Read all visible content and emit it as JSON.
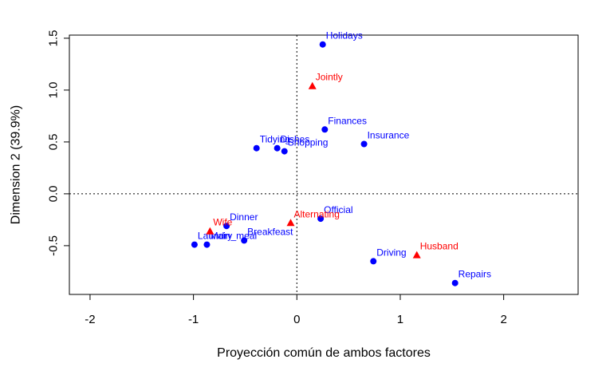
{
  "chart_data": {
    "type": "scatter",
    "title": "",
    "xlabel": "Proyección común de ambos factores",
    "ylabel": "Dimension 2 (39.9%)",
    "xlim": [
      -2.2,
      2.72
    ],
    "ylim": [
      -0.97,
      1.53
    ],
    "xticks": [
      -2,
      -1,
      0,
      1,
      2
    ],
    "yticks": [
      -0.5,
      0.0,
      0.5,
      1.0,
      1.5
    ],
    "xtick_labels": [
      "-2",
      "-1",
      "0",
      "1",
      "2"
    ],
    "ytick_labels": [
      "-0.5",
      "0.0",
      "0.5",
      "1.0",
      "1.5"
    ],
    "reference_lines": {
      "x": 0,
      "y": 0,
      "style": "dotted"
    },
    "colors": {
      "rows": "#0000ff",
      "columns": "#ff0000"
    },
    "series": [
      {
        "marker": "circle",
        "color": "#0000ff",
        "points": [
          {
            "label": "Holidays",
            "x": 0.25,
            "y": 1.44
          },
          {
            "label": "Finances",
            "x": 0.27,
            "y": 0.62
          },
          {
            "label": "Insurance",
            "x": 0.65,
            "y": 0.48
          },
          {
            "label": "Tidying",
            "x": -0.39,
            "y": 0.44
          },
          {
            "label": "Dishes",
            "x": -0.19,
            "y": 0.44
          },
          {
            "label": "Shopping",
            "x": -0.12,
            "y": 0.41
          },
          {
            "label": "Official",
            "x": 0.23,
            "y": -0.24
          },
          {
            "label": "Dinner",
            "x": -0.68,
            "y": -0.31
          },
          {
            "label": "Breakfeast",
            "x": -0.51,
            "y": -0.45
          },
          {
            "label": "Main_meal",
            "x": -0.87,
            "y": -0.49
          },
          {
            "label": "Laundry",
            "x": -0.99,
            "y": -0.49
          },
          {
            "label": "Driving",
            "x": 0.74,
            "y": -0.65
          },
          {
            "label": "Repairs",
            "x": 1.53,
            "y": -0.86
          }
        ]
      },
      {
        "marker": "triangle",
        "color": "#ff0000",
        "points": [
          {
            "label": "Jointly",
            "x": 0.15,
            "y": 1.04
          },
          {
            "label": "Alternating",
            "x": -0.06,
            "y": -0.28
          },
          {
            "label": "Wife",
            "x": -0.84,
            "y": -0.36
          },
          {
            "label": "Husband",
            "x": 1.16,
            "y": -0.59
          }
        ]
      }
    ]
  }
}
